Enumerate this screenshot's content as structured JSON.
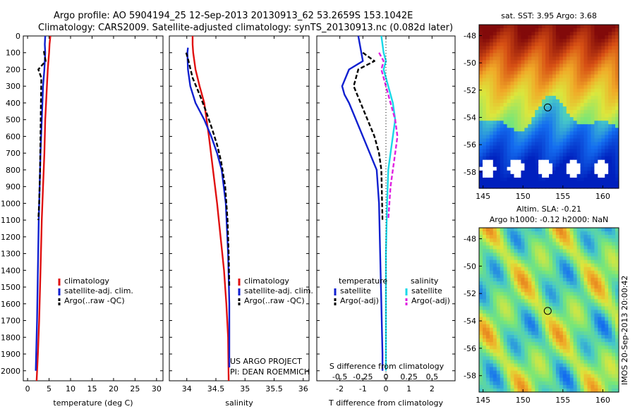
{
  "header": {
    "line1": "Argo profile: AO 5904194_25 12-Sep-2013 20130913_62 53.2659S 153.1042E",
    "line2": "Climatology: CARS2009. Satellite-adjusted climatology: synTS_20130913.nc (0.082d later)"
  },
  "chart_data": [
    {
      "type": "line",
      "xlabel": "temperature (deg C)",
      "ylabel": "",
      "xlim": [
        -1,
        31.5
      ],
      "ylim": [
        2060,
        0
      ],
      "xticks": [
        0,
        5,
        10,
        15,
        20,
        25,
        30
      ],
      "yticks": [
        0,
        100,
        200,
        300,
        400,
        500,
        600,
        700,
        800,
        900,
        1000,
        1100,
        1200,
        1300,
        1400,
        1500,
        1600,
        1700,
        1800,
        1900,
        2000
      ],
      "legend": [
        "climatology",
        "satellite-adj. clim.",
        "Argo(..raw -QC)"
      ],
      "series": [
        {
          "name": "climatology",
          "color": "#e01010",
          "style": "solid",
          "x": [
            5.3,
            5.1,
            5.0,
            4.7,
            4.5,
            4.3,
            4.1,
            3.9,
            3.6,
            3.3,
            3.0,
            2.7,
            2.4,
            2.1
          ],
          "y": [
            0,
            50,
            100,
            200,
            300,
            400,
            500,
            700,
            900,
            1100,
            1400,
            1700,
            1900,
            2060
          ]
        },
        {
          "name": "satellite-adj. clim.",
          "color": "#1020d0",
          "style": "solid",
          "x": [
            4.1,
            4.0,
            4.1,
            3.9,
            3.6,
            3.3,
            3.0,
            2.8,
            2.6,
            2.4,
            2.2,
            2.0,
            1.9
          ],
          "y": [
            0,
            50,
            100,
            200,
            300,
            500,
            700,
            900,
            1100,
            1400,
            1700,
            1900,
            2000
          ]
        },
        {
          "name": "Argo(..raw -QC)",
          "color": "#000000",
          "style": "dash",
          "x": [
            3.8,
            3.9,
            4.2,
            2.5,
            3.2,
            3.1,
            3.0,
            2.9,
            2.7,
            2.5
          ],
          "y": [
            90,
            110,
            150,
            200,
            250,
            400,
            600,
            800,
            1000,
            1100
          ]
        }
      ]
    },
    {
      "type": "line",
      "xlabel": "salinity",
      "ylabel": "",
      "xlim": [
        33.7,
        36.1
      ],
      "ylim": [
        2060,
        0
      ],
      "xticks": [
        34,
        34.5,
        35,
        35.5,
        36
      ],
      "legend": [
        "climatology",
        "satellite-adj. clim.",
        "Argo(..raw -QC)"
      ],
      "annotation": [
        "US ARGO PROJECT",
        "PI: DEAN ROEMMICH"
      ],
      "series": [
        {
          "name": "climatology",
          "color": "#e01010",
          "style": "solid",
          "x": [
            34.1,
            34.1,
            34.11,
            34.15,
            34.22,
            34.3,
            34.38,
            34.45,
            34.52,
            34.58,
            34.64,
            34.68,
            34.71,
            34.72
          ],
          "y": [
            0,
            50,
            100,
            200,
            300,
            400,
            600,
            800,
            1000,
            1200,
            1400,
            1600,
            1800,
            2060
          ]
        },
        {
          "name": "satellite-adj. clim.",
          "color": "#1020d0",
          "style": "solid",
          "x": [
            34.02,
            34.01,
            34.02,
            34.06,
            34.15,
            34.3,
            34.42,
            34.52,
            34.6,
            34.67,
            34.71,
            34.73,
            34.73
          ],
          "y": [
            70,
            100,
            200,
            300,
            400,
            500,
            600,
            700,
            800,
            1000,
            1300,
            1600,
            1980
          ]
        },
        {
          "name": "Argo(..raw -QC)",
          "color": "#000000",
          "style": "dash",
          "x": [
            33.99,
            34.03,
            34.1,
            34.22,
            34.33,
            34.43,
            34.52,
            34.59,
            34.66,
            34.7,
            34.72,
            34.73
          ],
          "y": [
            100,
            150,
            250,
            350,
            450,
            550,
            650,
            750,
            900,
            1100,
            1300,
            1500
          ]
        }
      ]
    },
    {
      "type": "line",
      "xlabel": "T difference from climatology",
      "xlabel_top": "S difference from climatology",
      "ylabel": "",
      "xlim": [
        -3,
        3
      ],
      "ylim": [
        2060,
        0
      ],
      "xticks": [
        -2,
        -1,
        0,
        1,
        2
      ],
      "xticks_S": [
        "-0.5",
        "-0.25",
        "0",
        "0.25",
        "0.5"
      ],
      "legend_t_title": "temperature",
      "legend_s_title": "salinity",
      "legend_t": [
        "satellite",
        "Argo(-adj)"
      ],
      "legend_s": [
        "satellite",
        "Argo(-adj)"
      ],
      "series": [
        {
          "name": "temperature satellite",
          "color": "#1020d0",
          "style": "solid",
          "x": [
            -1.2,
            -1.0,
            -1.6,
            -1.9,
            -1.8,
            -1.6,
            -1.3,
            -1.0,
            -0.7,
            -0.4,
            -0.3,
            -0.25,
            -0.2,
            -0.15,
            -0.15
          ],
          "y": [
            0,
            150,
            200,
            300,
            350,
            400,
            500,
            600,
            700,
            800,
            1000,
            1300,
            1600,
            1900,
            2000
          ]
        },
        {
          "name": "temperature Argo(-adj)",
          "color": "#000000",
          "style": "dash",
          "x": [
            -1.0,
            -0.5,
            -1.2,
            -1.4,
            -1.1,
            -0.8,
            -0.5,
            -0.3,
            -0.2,
            -0.15
          ],
          "y": [
            100,
            150,
            200,
            300,
            400,
            500,
            600,
            700,
            800,
            1100
          ]
        },
        {
          "name": "salinity satellite",
          "color": "#18d8e8",
          "style": "solid",
          "x": [
            -0.2,
            -0.1,
            0.0,
            -0.1,
            0.0,
            0.3,
            0.4,
            0.3,
            0.2,
            0.1,
            0.05,
            0.0,
            0.0,
            0.0
          ],
          "y": [
            0,
            100,
            150,
            200,
            250,
            400,
            500,
            600,
            700,
            800,
            1000,
            1300,
            1600,
            2000
          ]
        },
        {
          "name": "salinity Argo(-adj)",
          "color": "#e020e0",
          "style": "dash",
          "x": [
            -0.3,
            -0.1,
            -0.2,
            0.0,
            0.2,
            0.4,
            0.5,
            0.4,
            0.2,
            0.1
          ],
          "y": [
            100,
            150,
            200,
            300,
            400,
            500,
            600,
            700,
            900,
            1100
          ]
        }
      ]
    },
    {
      "type": "heatmap",
      "title": "sat. SST: 3.95 Argo: 3.68",
      "xlim": [
        144.5,
        162
      ],
      "ylim": [
        -59.2,
        -47.2
      ],
      "xticks": [
        145,
        150,
        155,
        160
      ],
      "yticks": [
        -48,
        -50,
        -52,
        -54,
        -56,
        -58
      ],
      "marker": {
        "lon": 153.1,
        "lat": -53.27
      }
    },
    {
      "type": "heatmap",
      "title": "Altim. SLA: -0.21",
      "subtitle": "Argo h1000: -0.12 h2000: NaN",
      "xlim": [
        144.5,
        162
      ],
      "ylim": [
        -59.2,
        -47.2
      ],
      "xticks": [
        145,
        150,
        155,
        160
      ],
      "yticks": [
        -48,
        -50,
        -52,
        -54,
        -56,
        -58
      ],
      "marker": {
        "lon": 153.1,
        "lat": -53.27
      }
    }
  ],
  "imos_stamp": "IMOS 20-Sep-2013 20:00:42"
}
